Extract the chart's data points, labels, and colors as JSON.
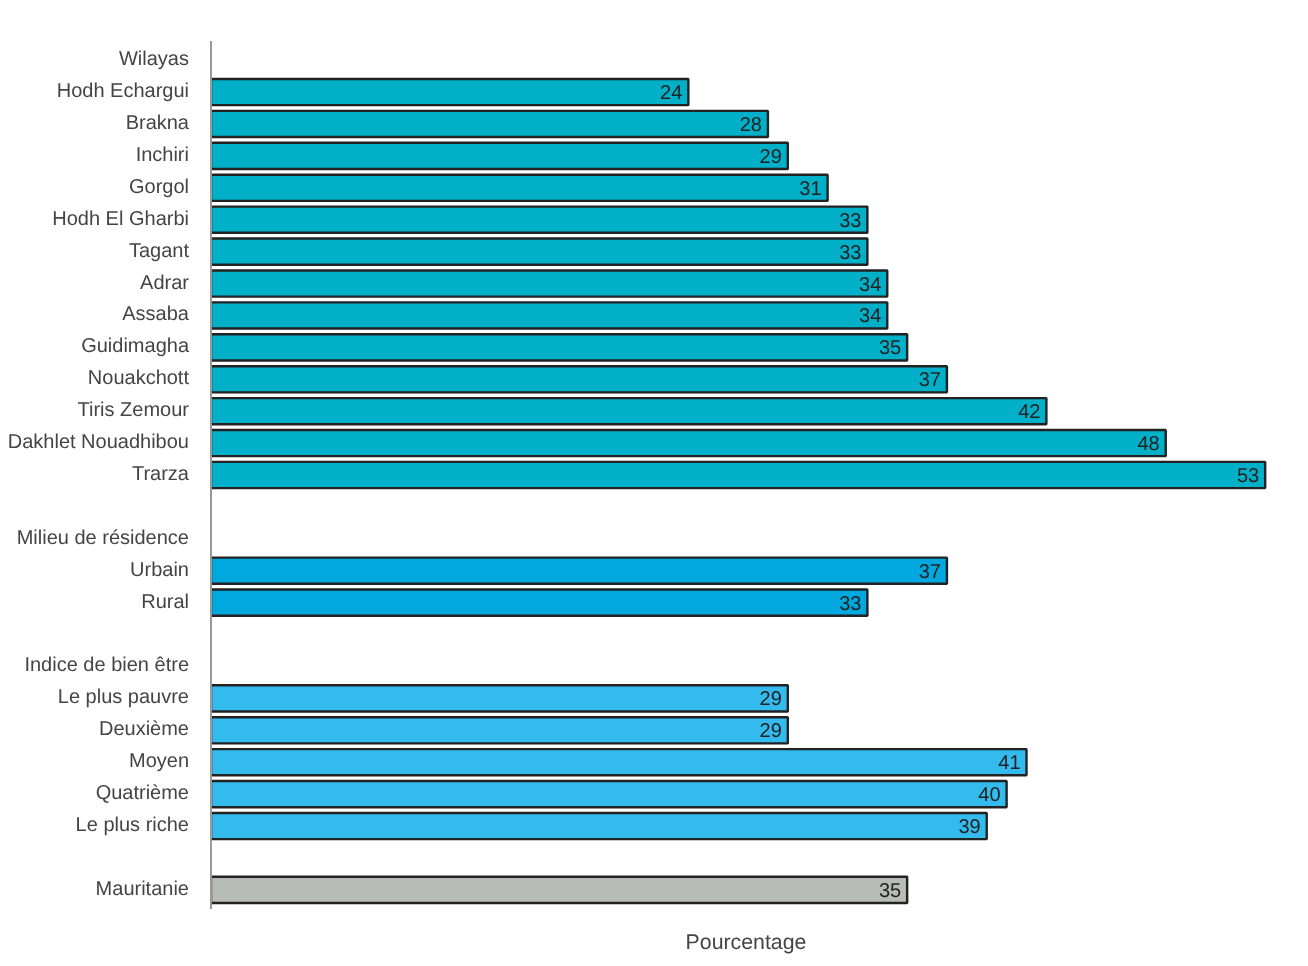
{
  "chart_data": {
    "type": "bar",
    "orientation": "horizontal",
    "xlabel": "Pourcentage",
    "categories": [
      "Wilayas",
      "Hodh Echargui",
      "Brakna",
      "Inchiri",
      "Gorgol",
      "Hodh El Gharbi",
      "Tagant",
      "Adrar",
      "Assaba",
      "Guidimagha",
      "Nouakchott",
      "Tiris Zemour",
      "Dakhlet Nouadhibou",
      "Trarza",
      null,
      "Milieu de résidence",
      "Urbain",
      "Rural",
      null,
      "Indice de bien être",
      "Le plus pauvre",
      "Deuxième",
      "Moyen",
      "Quatrième",
      "Le plus riche",
      null,
      "Mauritanie"
    ],
    "values": [
      null,
      24,
      28,
      29,
      31,
      33,
      33,
      34,
      34,
      35,
      37,
      42,
      48,
      53,
      null,
      null,
      37,
      33,
      null,
      null,
      29,
      29,
      41,
      40,
      39,
      null,
      35
    ],
    "colors": [
      null,
      "#00b0c8",
      "#00b0c8",
      "#00b0c8",
      "#00b0c8",
      "#00b0c8",
      "#00b0c8",
      "#00b0c8",
      "#00b0c8",
      "#00b0c8",
      "#00b0c8",
      "#00b0c8",
      "#00b0c8",
      "#00b0c8",
      null,
      null,
      "#00a8e0",
      "#00a8e0",
      null,
      null,
      "#33bbee",
      "#33bbee",
      "#33bbee",
      "#33bbee",
      "#33bbee",
      null,
      "#b8bcb8"
    ],
    "data_labels": true,
    "grid": false,
    "tick_labels": "y"
  }
}
